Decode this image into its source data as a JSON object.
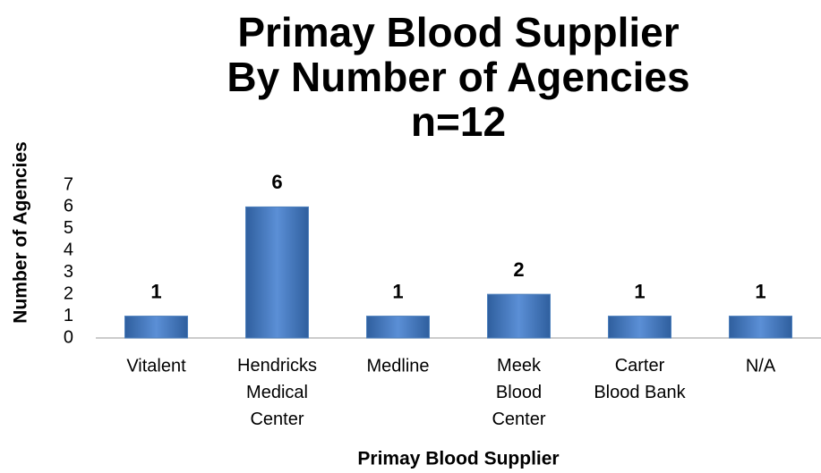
{
  "chart_data": {
    "type": "bar",
    "title": [
      "Primay Blood Supplier",
      "By Number of Agencies",
      "n=12"
    ],
    "categories": [
      "Vitalent",
      "Hendricks\nMedical\nCenter",
      "Medline",
      "Meek\nBlood\nCenter",
      "Carter\nBlood Bank",
      "N/A"
    ],
    "values": [
      1,
      6,
      1,
      2,
      1,
      1
    ],
    "color": "#4f81bd",
    "ylim": [
      0,
      7
    ],
    "yticks": [
      0,
      1,
      2,
      3,
      4,
      5,
      6,
      7
    ],
    "x_label": "Primay Blood Supplier",
    "y_label": "Number of Agencies",
    "grid": false
  }
}
